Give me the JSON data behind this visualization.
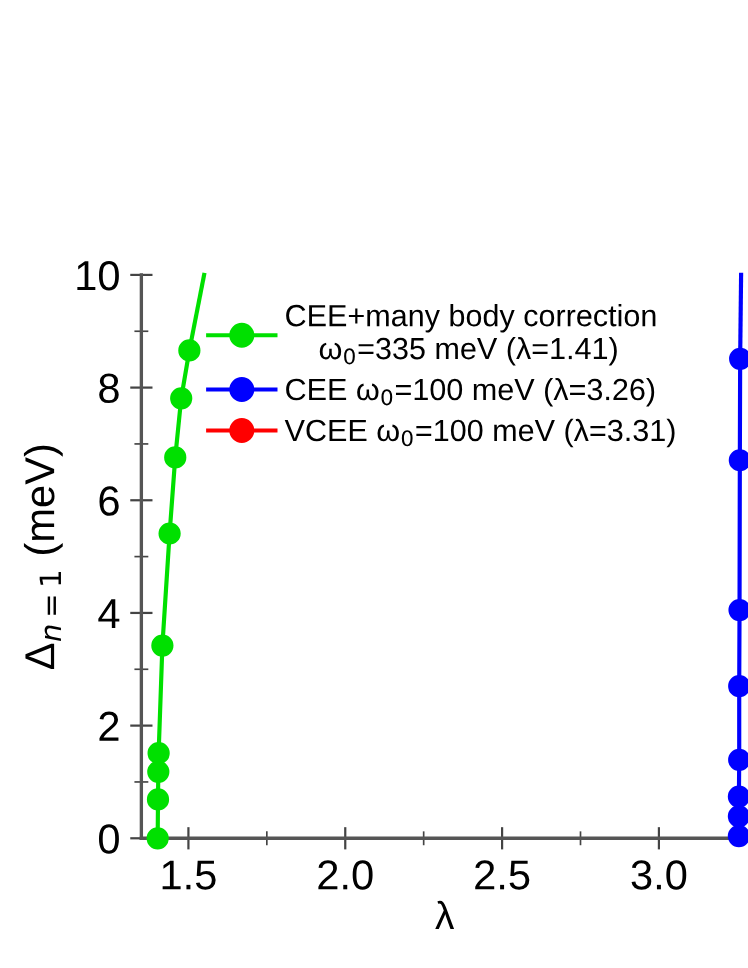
{
  "chart_data": {
    "type": "line",
    "xlabel": "λ",
    "ylabel": "Δ$_{n=1}$ (meV)",
    "xlim": [
      1.35,
      3.284
    ],
    "ylim": [
      0,
      10
    ],
    "xticks": [
      1.5,
      {
        "value": 1.75,
        "label": null
      },
      {
        "value": 2,
        "label": "2.0"
      },
      {
        "value": 2.25,
        "label": null
      },
      2.5,
      {
        "value": 2.75,
        "label": null
      },
      {
        "value": 3,
        "label": "3.0"
      },
      {
        "value": 3.25,
        "label": null
      }
    ],
    "yticks": [
      0,
      {
        "value": 1,
        "label": null
      },
      2,
      {
        "value": 3,
        "label": null
      },
      4,
      {
        "value": 5,
        "label": null
      },
      6,
      {
        "value": 7,
        "label": null
      },
      8,
      {
        "value": 9,
        "label": null
      },
      10
    ],
    "legend": "top left",
    "marker": "circle",
    "grid": false,
    "series": [
      {
        "name": "CEE+many body correction\n    ω$_{0}$=335 meV (λ=1.41)",
        "color": "#00e000",
        "x": [
          1.402,
          1.403,
          1.404,
          1.405,
          1.417,
          1.44,
          1.458,
          1.477,
          1.503
        ],
        "values": [
          0,
          0.69,
          1.18,
          1.51,
          3.42,
          5.41,
          6.76,
          7.81,
          8.66
        ]
      },
      {
        "color": "#00e000",
        "marker": "none",
        "x": [
          1.503,
          1.55
        ],
        "values": [
          8.66,
          10
        ]
      },
      {
        "name": "CEE ω$_{0}$=100 meV (λ=3.26)",
        "color": "#0000ff",
        "x": [
          3.255,
          3.255,
          3.255,
          3.256,
          3.256,
          3.257,
          3.258,
          3.259
        ],
        "values": [
          0.04,
          0.39,
          0.74,
          1.39,
          2.7,
          4.05,
          6.71,
          8.51
        ]
      },
      {
        "color": "#0000ff",
        "marker": "none",
        "x": [
          3.259,
          3.262
        ],
        "values": [
          8.51,
          10
        ]
      },
      {
        "name": "VCEE ω$_{0}$=100 meV (λ=3.31)",
        "color": "#ff0000"
      }
    ]
  }
}
